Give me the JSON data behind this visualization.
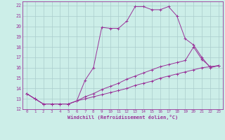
{
  "xlabel": "Windchill (Refroidissement éolien,°C)",
  "bg_color": "#cceee8",
  "grid_color": "#aacccc",
  "line_color": "#993399",
  "xlim": [
    -0.5,
    23.5
  ],
  "ylim": [
    12,
    22.4
  ],
  "xticks": [
    0,
    1,
    2,
    3,
    4,
    5,
    6,
    7,
    8,
    9,
    10,
    11,
    12,
    13,
    14,
    15,
    16,
    17,
    18,
    19,
    20,
    21,
    22,
    23
  ],
  "yticks": [
    12,
    13,
    14,
    15,
    16,
    17,
    18,
    19,
    20,
    21,
    22
  ],
  "series": [
    {
      "x": [
        0,
        1,
        2,
        3,
        4,
        5,
        6,
        7,
        8,
        9,
        10,
        11,
        12,
        13,
        14,
        15,
        16,
        17,
        18,
        19,
        20,
        21,
        22,
        23
      ],
      "y": [
        13.5,
        13.0,
        12.5,
        12.5,
        12.5,
        12.5,
        12.8,
        14.8,
        16.0,
        19.9,
        19.8,
        19.8,
        20.5,
        21.9,
        21.9,
        21.6,
        21.6,
        21.9,
        21.0,
        18.8,
        18.2,
        17.0,
        16.0,
        16.2
      ]
    },
    {
      "x": [
        0,
        1,
        2,
        3,
        4,
        5,
        6,
        7,
        8,
        9,
        10,
        11,
        12,
        13,
        14,
        15,
        16,
        17,
        18,
        19,
        20,
        21,
        22,
        23
      ],
      "y": [
        13.5,
        13.0,
        12.5,
        12.5,
        12.5,
        12.5,
        12.8,
        13.0,
        13.2,
        13.4,
        13.6,
        13.8,
        14.0,
        14.3,
        14.5,
        14.7,
        15.0,
        15.2,
        15.4,
        15.6,
        15.8,
        16.0,
        16.1,
        16.2
      ]
    },
    {
      "x": [
        0,
        1,
        2,
        3,
        4,
        5,
        6,
        7,
        8,
        9,
        10,
        11,
        12,
        13,
        14,
        15,
        16,
        17,
        18,
        19,
        20,
        21,
        22,
        23
      ],
      "y": [
        13.5,
        13.0,
        12.5,
        12.5,
        12.5,
        12.5,
        12.8,
        13.2,
        13.5,
        13.9,
        14.2,
        14.5,
        14.9,
        15.2,
        15.5,
        15.8,
        16.1,
        16.3,
        16.5,
        16.7,
        18.0,
        16.8,
        16.1,
        16.2
      ]
    }
  ]
}
